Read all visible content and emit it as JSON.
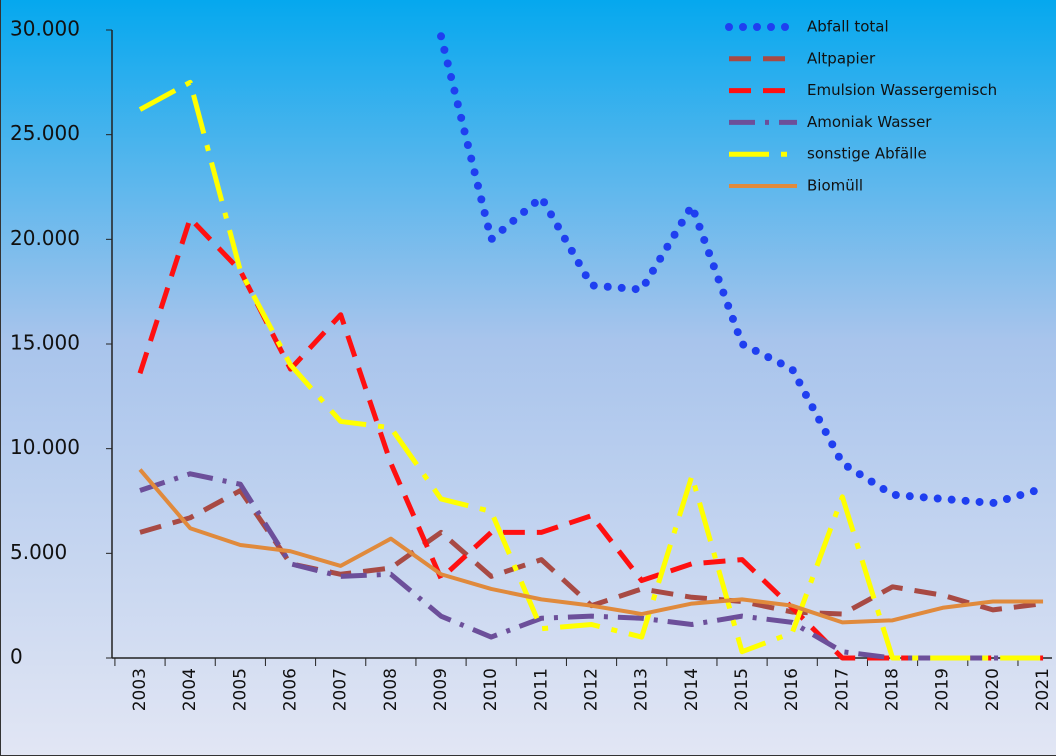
{
  "chart_data": {
    "type": "line",
    "categories": [
      "2003",
      "2004",
      "2005",
      "2006",
      "2007",
      "2008",
      "2009",
      "2010",
      "2011",
      "2012",
      "2013",
      "2014",
      "2015",
      "2016",
      "2017",
      "2018",
      "2019",
      "2020",
      "2021"
    ],
    "series": [
      {
        "name": "Abfall total",
        "color": "#1f3ff0",
        "dash": "dotted",
        "values": [
          null,
          null,
          null,
          null,
          null,
          null,
          29700,
          20000,
          22000,
          17800,
          17600,
          21600,
          15000,
          13800,
          9300,
          7800,
          7600,
          7400,
          8100
        ]
      },
      {
        "name": "Altpapier",
        "color": "#a84a44",
        "dash": "dashed",
        "values": [
          6000,
          6700,
          8000,
          4500,
          4000,
          4300,
          6000,
          3900,
          4700,
          2500,
          3300,
          2900,
          2700,
          2200,
          2100,
          3400,
          3000,
          2300,
          2600
        ]
      },
      {
        "name": "Emulsion Wassergemisch",
        "color": "#ff1010",
        "dash": "dashed",
        "values": [
          13600,
          21000,
          18500,
          13800,
          16400,
          9300,
          3800,
          6000,
          6000,
          6800,
          3700,
          4500,
          4700,
          2400,
          0,
          0,
          0,
          0,
          0
        ]
      },
      {
        "name": "Amoniak Wasser",
        "color": "#6c4f9a",
        "dash": "dashdot",
        "values": [
          8000,
          8800,
          8300,
          4500,
          3900,
          4000,
          2000,
          1000,
          1900,
          2000,
          1900,
          1600,
          2000,
          1700,
          300,
          0,
          0,
          0,
          0
        ]
      },
      {
        "name": "sonstige Abfälle",
        "color": "#ffff00",
        "dash": "longdashdot",
        "values": [
          26200,
          27500,
          18500,
          14000,
          11300,
          11000,
          7600,
          7000,
          1400,
          1600,
          1000,
          8700,
          300,
          1200,
          7700,
          0,
          0,
          0,
          0
        ]
      },
      {
        "name": "Biomüll",
        "color": "#e08a3c",
        "dash": "solid",
        "values": [
          9000,
          6200,
          5400,
          5100,
          4400,
          5700,
          4000,
          3300,
          2800,
          2500,
          2100,
          2600,
          2800,
          2500,
          1700,
          1800,
          2400,
          2700,
          2700
        ]
      }
    ],
    "ylim": [
      0,
      30000
    ],
    "yticks": [
      {
        "value": 0,
        "label": "0"
      },
      {
        "value": 5000,
        "label": "5.000"
      },
      {
        "value": 10000,
        "label": "10.000"
      },
      {
        "value": 15000,
        "label": "15.000"
      },
      {
        "value": 20000,
        "label": "20.000"
      },
      {
        "value": 25000,
        "label": "25.000"
      },
      {
        "value": 30000,
        "label": "30.000"
      }
    ],
    "legend": "upper right"
  }
}
